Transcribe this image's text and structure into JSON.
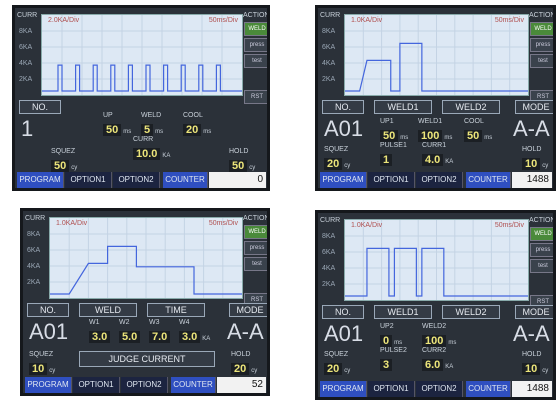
{
  "panels": [
    {
      "chart": {
        "label": "CURR",
        "yticks": [
          "8KA",
          "6KA",
          "4KA",
          "2KA"
        ],
        "scale": "2.0KA/Div",
        "time": "50ms/Div"
      },
      "action": {
        "title": "ACTION",
        "buttons": [
          "WELD",
          "press",
          "test",
          "RST"
        ]
      },
      "no": {
        "label": "NO.",
        "value": "1"
      },
      "fields": [
        {
          "label": "UP",
          "value": "50",
          "unit": "ms"
        },
        {
          "label": "WELD",
          "value": "5",
          "unit": "ms"
        },
        {
          "label": "COOL",
          "value": "20",
          "unit": "ms"
        },
        {
          "label": "CURR",
          "value": "10.0",
          "unit": "KA"
        },
        {
          "label": "SQUEZ",
          "value": "50",
          "unit": "cy"
        },
        {
          "label": "HOLD",
          "value": "50",
          "unit": "cy"
        }
      ],
      "footer": {
        "tabs": [
          "PROGRAM",
          "OPTION1",
          "OPTION2"
        ],
        "counter_label": "COUNTER",
        "counter": "0"
      }
    },
    {
      "chart": {
        "label": "CURR",
        "yticks": [
          "8KA",
          "6KA",
          "4KA",
          "2KA"
        ],
        "scale": "1.0KA/Div",
        "time": "50ms/Div"
      },
      "action": {
        "title": "ACTION",
        "buttons": [
          "WELD",
          "press",
          "test",
          "RST"
        ]
      },
      "no": {
        "label": "NO.",
        "value": "A01"
      },
      "header": [
        "WELD1",
        "WELD2"
      ],
      "mode": {
        "label": "MODE",
        "value": "A-A"
      },
      "fields": [
        {
          "label": "UP1",
          "value": "50",
          "unit": "ms"
        },
        {
          "label": "WELD1",
          "value": "100",
          "unit": "ms"
        },
        {
          "label": "COOL",
          "value": "50",
          "unit": "ms"
        },
        {
          "label": "PULSE1",
          "value": "1"
        },
        {
          "label": "CURR1",
          "value": "4.0",
          "unit": "KA"
        },
        {
          "label": "SQUEZ",
          "value": "20",
          "unit": "cy"
        },
        {
          "label": "HOLD",
          "value": "10",
          "unit": "cy"
        }
      ],
      "footer": {
        "tabs": [
          "PROGRAM",
          "OPTION1",
          "OPTION2"
        ],
        "counter_label": "COUNTER",
        "counter": "1488"
      }
    },
    {
      "chart": {
        "label": "CURR",
        "yticks": [
          "8KA",
          "6KA",
          "4KA",
          "2KA"
        ],
        "scale": "1.0KA/Div",
        "time": "50ms/Div"
      },
      "action": {
        "title": "ACTION",
        "buttons": [
          "WELD",
          "press",
          "test",
          "RST"
        ]
      },
      "no": {
        "label": "NO.",
        "value": "A01"
      },
      "header": [
        "WELD",
        "TIME"
      ],
      "mode": {
        "label": "MODE",
        "value": "A-A"
      },
      "fields": [
        {
          "label": "W1",
          "value": "3.0"
        },
        {
          "label": "W2",
          "value": "5.0"
        },
        {
          "label": "W3",
          "value": "7.0"
        },
        {
          "label": "W4",
          "value": "3.0",
          "unit": "KA"
        },
        {
          "label": "SQUEZ",
          "value": "10",
          "unit": "cy"
        },
        {
          "label": "HOLD",
          "value": "20",
          "unit": "cy"
        }
      ],
      "note": "JUDGE CURRENT",
      "footer": {
        "tabs": [
          "PROGRAM",
          "OPTION1",
          "OPTION2"
        ],
        "counter_label": "COUNTER",
        "counter": "52"
      }
    },
    {
      "chart": {
        "label": "CURR",
        "yticks": [
          "8KA",
          "6KA",
          "4KA",
          "2KA"
        ],
        "scale": "1.0KA/Div",
        "time": "50ms/Div"
      },
      "action": {
        "title": "ACTION",
        "buttons": [
          "WELD",
          "press",
          "test",
          "RST"
        ]
      },
      "no": {
        "label": "NO.",
        "value": "A01"
      },
      "header": [
        "WELD1",
        "WELD2"
      ],
      "mode": {
        "label": "MODE",
        "value": "A-A"
      },
      "fields": [
        {
          "label": "UP2",
          "value": "0",
          "unit": "ms"
        },
        {
          "label": "WELD2",
          "value": "100",
          "unit": "ms"
        },
        {
          "label": "PULSE2",
          "value": "3"
        },
        {
          "label": "CURR2",
          "value": "6.0",
          "unit": "KA"
        },
        {
          "label": "SQUEZ",
          "value": "20",
          "unit": "cy"
        },
        {
          "label": "HOLD",
          "value": "10",
          "unit": "cy"
        }
      ],
      "footer": {
        "tabs": [
          "PROGRAM",
          "OPTION1",
          "OPTION2"
        ],
        "counter_label": "COUNTER",
        "counter": "1488"
      }
    }
  ]
}
